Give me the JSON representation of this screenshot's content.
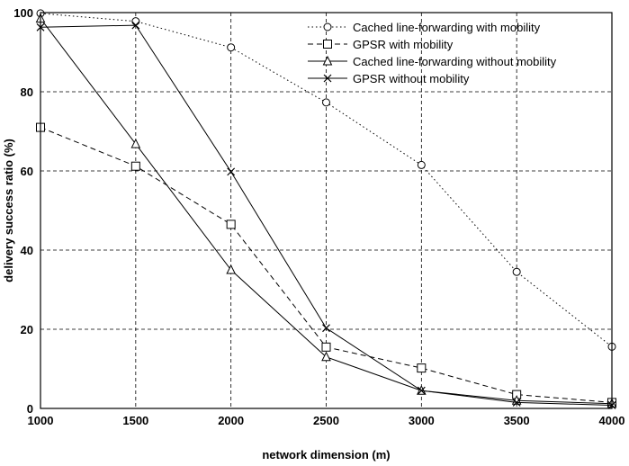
{
  "chart_data": {
    "type": "line",
    "title": "",
    "xlabel": "network dimension (m)",
    "ylabel": "delivery success ratio (%)",
    "xlim": [
      1000,
      4000
    ],
    "ylim": [
      0,
      100
    ],
    "x_ticks": [
      "1000",
      "1500",
      "2000",
      "2500",
      "3000",
      "3500",
      "4000"
    ],
    "y_ticks": [
      "0",
      "20",
      "40",
      "60",
      "80",
      "100"
    ],
    "grid": true,
    "legend_position": "top-right",
    "series": [
      {
        "name": "Cached line-forwarding with mobility",
        "marker": "circle",
        "line_style": "dotted",
        "x": [
          1000,
          1500,
          2000,
          2500,
          3000,
          3500,
          4000
        ],
        "y": [
          99.8,
          97.8,
          91.2,
          77.3,
          61.5,
          34.5,
          15.6
        ]
      },
      {
        "name": "GPSR with mobility",
        "marker": "square",
        "line_style": "dashed",
        "x": [
          1000,
          1500,
          2000,
          2500,
          3000,
          3500,
          4000
        ],
        "y": [
          71.0,
          61.2,
          46.5,
          15.5,
          10.2,
          3.5,
          1.5
        ]
      },
      {
        "name": "Cached line-forwarding without mobility",
        "marker": "triangle",
        "line_style": "solid",
        "x": [
          1000,
          1500,
          2000,
          2500,
          3000,
          3500,
          4000
        ],
        "y": [
          98.5,
          66.8,
          35.0,
          13.0,
          4.5,
          2.0,
          1.2
        ]
      },
      {
        "name": "GPSR without mobility",
        "marker": "x",
        "line_style": "solid",
        "x": [
          1000,
          1500,
          2000,
          2500,
          3000,
          3500,
          4000
        ],
        "y": [
          96.3,
          96.8,
          59.8,
          20.3,
          4.5,
          1.5,
          0.8
        ]
      }
    ]
  }
}
